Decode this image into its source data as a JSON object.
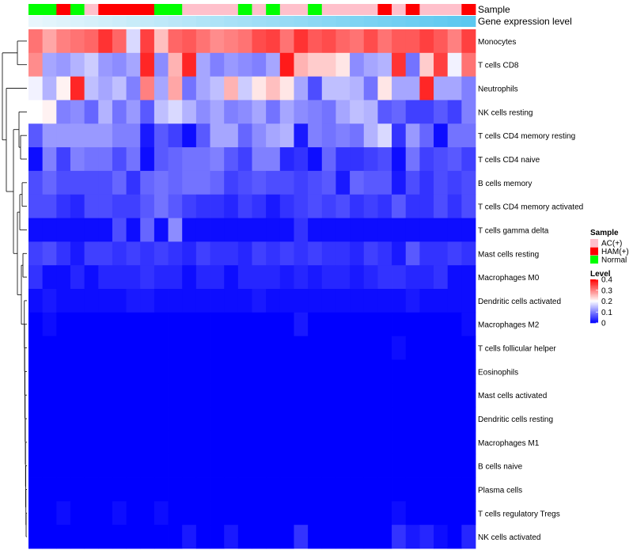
{
  "chart_data": {
    "type": "heatmap",
    "title": "",
    "annotation_labels": {
      "sample": "Sample",
      "expression": "Gene expression level"
    },
    "row_labels": [
      "Monocytes",
      "T cells CD8",
      "Neutrophils",
      "NK cells resting",
      "T cells CD4 memory resting",
      "T cells CD4 naive",
      "B cells memory",
      "T cells CD4 memory activated",
      "T cells gamma delta",
      "Mast cells resting",
      "Macrophages M0",
      "Dendritic cells activated",
      "Macrophages M2",
      "T cells follicular helper",
      "Eosinophils",
      "Mast cells activated",
      "Dendritic cells resting",
      "Macrophages M1",
      "B cells naive",
      "Plasma cells",
      "T cells regulatory  Tregs",
      "NK cells activated"
    ],
    "sample_groups": [
      "Normal",
      "Normal",
      "HAM(+)",
      "Normal",
      "AC(+)",
      "HAM(+)",
      "HAM(+)",
      "HAM(+)",
      "HAM(+)",
      "Normal",
      "Normal",
      "AC(+)",
      "AC(+)",
      "AC(+)",
      "AC(+)",
      "Normal",
      "AC(+)",
      "Normal",
      "AC(+)",
      "AC(+)",
      "Normal",
      "AC(+)",
      "AC(+)",
      "AC(+)",
      "AC(+)",
      "HAM(+)",
      "AC(+)",
      "HAM(+)",
      "AC(+)",
      "AC(+)",
      "AC(+)",
      "HAM(+)"
    ],
    "values": [
      [
        0.31,
        0.27,
        0.3,
        0.31,
        0.32,
        0.36,
        0.32,
        0.17,
        0.35,
        0.25,
        0.32,
        0.33,
        0.31,
        0.29,
        0.3,
        0.31,
        0.34,
        0.35,
        0.31,
        0.36,
        0.33,
        0.34,
        0.32,
        0.31,
        0.34,
        0.31,
        0.33,
        0.33,
        0.35,
        0.33,
        0.3,
        0.35
      ],
      [
        0.29,
        0.13,
        0.12,
        0.14,
        0.16,
        0.12,
        0.11,
        0.13,
        0.37,
        0.11,
        0.26,
        0.37,
        0.13,
        0.1,
        0.12,
        0.11,
        0.1,
        0.13,
        0.38,
        0.26,
        0.24,
        0.24,
        0.22,
        0.11,
        0.13,
        0.14,
        0.36,
        0.09,
        0.24,
        0.35,
        0.19,
        0.31
      ],
      [
        0.19,
        0.14,
        0.21,
        0.37,
        0.15,
        0.13,
        0.15,
        0.1,
        0.3,
        0.13,
        0.27,
        0.09,
        0.13,
        0.15,
        0.26,
        0.16,
        0.22,
        0.25,
        0.22,
        0.13,
        0.06,
        0.15,
        0.15,
        0.14,
        0.09,
        0.22,
        0.13,
        0.13,
        0.37,
        0.13,
        0.13,
        0.1
      ],
      [
        0.2,
        0.21,
        0.1,
        0.11,
        0.08,
        0.14,
        0.09,
        0.12,
        0.07,
        0.15,
        0.17,
        0.14,
        0.11,
        0.13,
        0.1,
        0.11,
        0.13,
        0.09,
        0.13,
        0.11,
        0.1,
        0.09,
        0.13,
        0.15,
        0.14,
        0.07,
        0.08,
        0.05,
        0.05,
        0.07,
        0.05,
        0.1
      ],
      [
        0.07,
        0.12,
        0.12,
        0.12,
        0.12,
        0.12,
        0.1,
        0.1,
        0.02,
        0.07,
        0.05,
        0.01,
        0.07,
        0.13,
        0.13,
        0.08,
        0.11,
        0.13,
        0.14,
        0.02,
        0.1,
        0.09,
        0.1,
        0.09,
        0.14,
        0.17,
        0.04,
        0.12,
        0.08,
        0.01,
        0.09,
        0.09
      ],
      [
        0.01,
        0.1,
        0.05,
        0.1,
        0.09,
        0.09,
        0.06,
        0.09,
        0.01,
        0.07,
        0.08,
        0.09,
        0.09,
        0.1,
        0.07,
        0.05,
        0.1,
        0.1,
        0.03,
        0.04,
        0.01,
        0.08,
        0.04,
        0.04,
        0.05,
        0.06,
        0.01,
        0.09,
        0.05,
        0.06,
        0.07,
        0.05
      ],
      [
        0.06,
        0.08,
        0.06,
        0.06,
        0.06,
        0.06,
        0.08,
        0.04,
        0.08,
        0.09,
        0.08,
        0.09,
        0.09,
        0.08,
        0.05,
        0.06,
        0.07,
        0.06,
        0.06,
        0.05,
        0.06,
        0.07,
        0.02,
        0.08,
        0.07,
        0.07,
        0.02,
        0.06,
        0.04,
        0.06,
        0.05,
        0.06
      ],
      [
        0.06,
        0.06,
        0.04,
        0.03,
        0.06,
        0.06,
        0.05,
        0.05,
        0.07,
        0.09,
        0.07,
        0.05,
        0.04,
        0.04,
        0.03,
        0.05,
        0.04,
        0.02,
        0.04,
        0.05,
        0.06,
        0.05,
        0.06,
        0.04,
        0.05,
        0.04,
        0.07,
        0.04,
        0.04,
        0.06,
        0.04,
        0.06
      ],
      [
        0.01,
        0.01,
        0.01,
        0.01,
        0.01,
        0.01,
        0.06,
        0.01,
        0.08,
        0.01,
        0.11,
        0.01,
        0.01,
        0.01,
        0.01,
        0.01,
        0.01,
        0.01,
        0.01,
        0.04,
        0.01,
        0.01,
        0.01,
        0.01,
        0.01,
        0.01,
        0.01,
        0.01,
        0.01,
        0.01,
        0.01,
        0.01
      ],
      [
        0.05,
        0.06,
        0.04,
        0.02,
        0.05,
        0.05,
        0.04,
        0.05,
        0.04,
        0.05,
        0.04,
        0.03,
        0.05,
        0.04,
        0.04,
        0.03,
        0.05,
        0.04,
        0.05,
        0.04,
        0.05,
        0.04,
        0.04,
        0.03,
        0.05,
        0.04,
        0.02,
        0.07,
        0.04,
        0.04,
        0.05,
        0.04
      ],
      [
        0.04,
        0.01,
        0.01,
        0.03,
        0.01,
        0.03,
        0.03,
        0.03,
        0.04,
        0.03,
        0.03,
        0.01,
        0.03,
        0.03,
        0.01,
        0.03,
        0.03,
        0.03,
        0.02,
        0.03,
        0.02,
        0.03,
        0.03,
        0.02,
        0.03,
        0.04,
        0.04,
        0.03,
        0.03,
        0.04,
        0.01,
        0.01
      ],
      [
        0.01,
        0.02,
        0.01,
        0.01,
        0.01,
        0.01,
        0.01,
        0.02,
        0.02,
        0.01,
        0.01,
        0.01,
        0.01,
        0.01,
        0.01,
        0.01,
        0.02,
        0.01,
        0.01,
        0.01,
        0.01,
        0.01,
        0.01,
        0.01,
        0.01,
        0.01,
        0.01,
        0.02,
        0.01,
        0.01,
        0.01,
        0.01
      ],
      [
        0.0,
        0.01,
        0.0,
        0.0,
        0.0,
        0.0,
        0.0,
        0.0,
        0.0,
        0.0,
        0.0,
        0.0,
        0.0,
        0.0,
        0.0,
        0.0,
        0.0,
        0.0,
        0.0,
        0.02,
        0.0,
        0.0,
        0.0,
        0.0,
        0.0,
        0.0,
        0.0,
        0.0,
        0.0,
        0.0,
        0.0,
        0.01
      ],
      [
        0.0,
        0.0,
        0.0,
        0.0,
        0.0,
        0.0,
        0.0,
        0.0,
        0.0,
        0.0,
        0.0,
        0.0,
        0.0,
        0.0,
        0.0,
        0.0,
        0.0,
        0.0,
        0.0,
        0.0,
        0.0,
        0.0,
        0.0,
        0.0,
        0.0,
        0.0,
        0.01,
        0.0,
        0.0,
        0.0,
        0.0,
        0.0
      ],
      [
        0.0,
        0.0,
        0.0,
        0.0,
        0.0,
        0.0,
        0.0,
        0.0,
        0.0,
        0.0,
        0.0,
        0.0,
        0.0,
        0.0,
        0.0,
        0.0,
        0.0,
        0.0,
        0.0,
        0.0,
        0.0,
        0.0,
        0.0,
        0.0,
        0.0,
        0.0,
        0.0,
        0.0,
        0.0,
        0.0,
        0.0,
        0.0
      ],
      [
        0.0,
        0.0,
        0.0,
        0.0,
        0.0,
        0.0,
        0.0,
        0.0,
        0.0,
        0.0,
        0.0,
        0.0,
        0.0,
        0.0,
        0.0,
        0.0,
        0.0,
        0.0,
        0.0,
        0.0,
        0.0,
        0.0,
        0.0,
        0.0,
        0.0,
        0.0,
        0.0,
        0.0,
        0.0,
        0.0,
        0.0,
        0.0
      ],
      [
        0.0,
        0.0,
        0.0,
        0.0,
        0.0,
        0.0,
        0.0,
        0.0,
        0.0,
        0.0,
        0.0,
        0.0,
        0.0,
        0.0,
        0.0,
        0.0,
        0.0,
        0.0,
        0.0,
        0.0,
        0.0,
        0.0,
        0.0,
        0.0,
        0.0,
        0.0,
        0.0,
        0.0,
        0.0,
        0.0,
        0.0,
        0.0
      ],
      [
        0.0,
        0.0,
        0.0,
        0.0,
        0.0,
        0.0,
        0.0,
        0.0,
        0.0,
        0.0,
        0.0,
        0.0,
        0.0,
        0.0,
        0.0,
        0.0,
        0.0,
        0.0,
        0.0,
        0.0,
        0.0,
        0.0,
        0.0,
        0.0,
        0.0,
        0.0,
        0.0,
        0.0,
        0.0,
        0.0,
        0.0,
        0.0
      ],
      [
        0.0,
        0.0,
        0.0,
        0.0,
        0.0,
        0.0,
        0.0,
        0.0,
        0.0,
        0.0,
        0.0,
        0.0,
        0.0,
        0.0,
        0.0,
        0.0,
        0.0,
        0.0,
        0.0,
        0.0,
        0.0,
        0.0,
        0.0,
        0.0,
        0.0,
        0.0,
        0.0,
        0.0,
        0.0,
        0.0,
        0.0,
        0.0
      ],
      [
        0.0,
        0.0,
        0.0,
        0.0,
        0.0,
        0.0,
        0.0,
        0.0,
        0.0,
        0.0,
        0.0,
        0.0,
        0.0,
        0.0,
        0.0,
        0.0,
        0.0,
        0.0,
        0.0,
        0.0,
        0.0,
        0.0,
        0.0,
        0.0,
        0.0,
        0.0,
        0.0,
        0.0,
        0.0,
        0.0,
        0.0,
        0.0
      ],
      [
        0.0,
        0.0,
        0.01,
        0.0,
        0.0,
        0.0,
        0.01,
        0.0,
        0.0,
        0.01,
        0.0,
        0.0,
        0.0,
        0.0,
        0.0,
        0.0,
        0.0,
        0.0,
        0.0,
        0.0,
        0.0,
        0.0,
        0.0,
        0.0,
        0.0,
        0.0,
        0.01,
        0.0,
        0.0,
        0.0,
        0.0,
        0.0
      ],
      [
        0.0,
        0.0,
        0.0,
        0.0,
        0.0,
        0.0,
        0.0,
        0.0,
        0.0,
        0.0,
        0.0,
        0.02,
        0.0,
        0.0,
        0.02,
        0.0,
        0.0,
        0.0,
        0.0,
        0.04,
        0.0,
        0.0,
        0.0,
        0.0,
        0.0,
        0.0,
        0.04,
        0.02,
        0.03,
        0.01,
        0.0,
        0.03
      ]
    ],
    "color_scale": {
      "min": 0,
      "mid": 0.2,
      "max": 0.4,
      "low": "#0000FF",
      "midcolor": "#FFFFFF",
      "high": "#FF0000"
    },
    "legend_sample": {
      "title": "Sample",
      "entries": [
        {
          "label": "AC(+)",
          "color": "#FFC0CB"
        },
        {
          "label": "HAM(+)",
          "color": "#FF0000"
        },
        {
          "label": "Normal",
          "color": "#00FF00"
        }
      ]
    },
    "legend_level": {
      "title": "Level",
      "ticks": [
        "0.4",
        "0.3",
        "0.2",
        "0.1",
        "0"
      ]
    },
    "expression_bar_color": "#5BC8F0"
  }
}
